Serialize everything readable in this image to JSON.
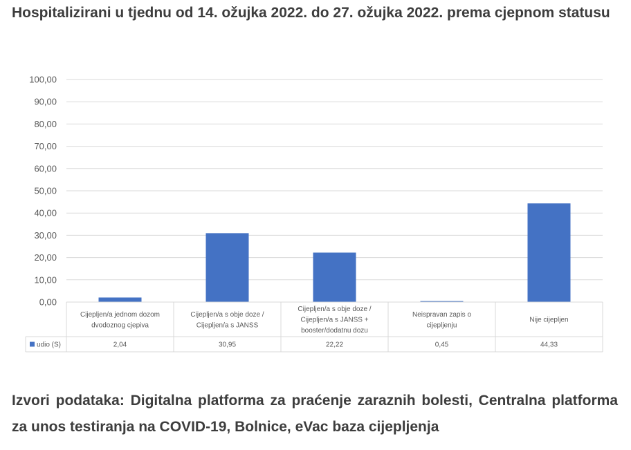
{
  "title": "Hospitalizirani u tjednu od 14. ožujka 2022. do 27. ožujka 2022. prema cjepnom statusu",
  "source_text": "Izvori podataka: Digitalna platforma za praćenje zaraznih bolesti, Centralna platforma za unos testiranja na COVID-19, Bolnice, eVac baza cijepljenja",
  "chart_data": {
    "type": "bar",
    "categories": [
      [
        "Cijepljen/a jednom dozom",
        "dvodoznog cjepiva"
      ],
      [
        "Cijepljen/a s obje doze /",
        "Cijepljen/a s JANSS"
      ],
      [
        "Cijepljen/a s obje doze /",
        "Cijepljen/a s JANSS +",
        "booster/dodatnu dozu"
      ],
      [
        "Neispravan zapis o",
        "cijepljenju"
      ],
      [
        "Nije cijepljen"
      ]
    ],
    "series": [
      {
        "name": "udio (S)",
        "values": [
          2.04,
          30.95,
          22.22,
          0.45,
          44.33
        ],
        "color": "#4472c4"
      }
    ],
    "value_labels": [
      "2,04",
      "30,95",
      "22,22",
      "0,45",
      "44,33"
    ],
    "y_ticks": [
      "0,00",
      "10,00",
      "20,00",
      "30,00",
      "40,00",
      "50,00",
      "60,00",
      "70,00",
      "80,00",
      "90,00",
      "100,00"
    ],
    "ylim": [
      0,
      100
    ],
    "grid": true,
    "legend": "data-table"
  }
}
